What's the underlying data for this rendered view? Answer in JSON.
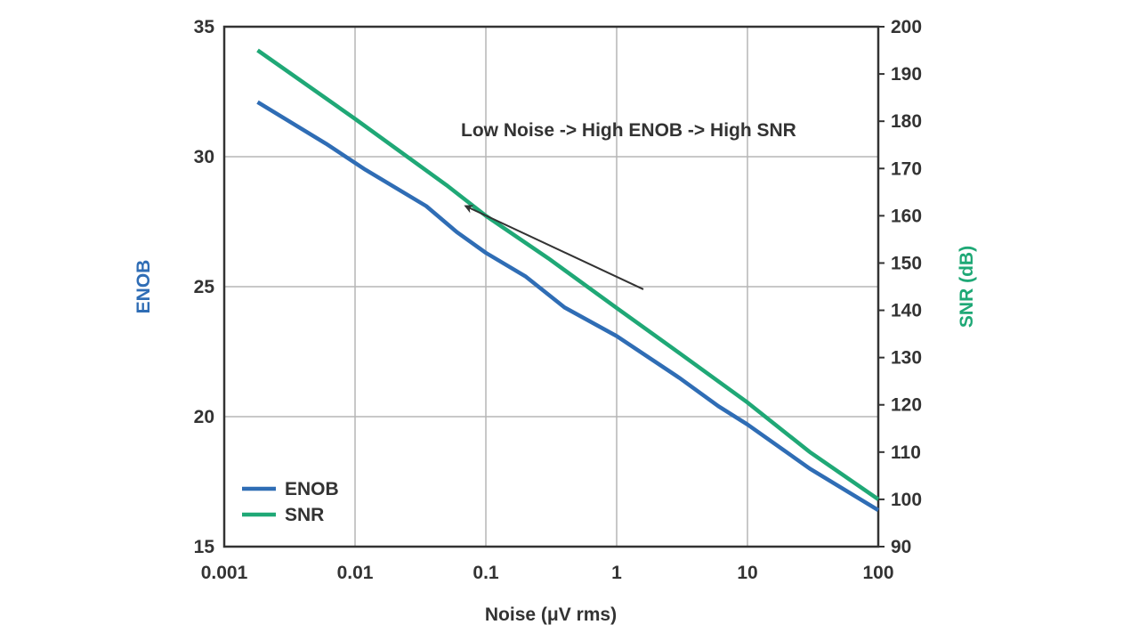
{
  "chart_data": {
    "type": "line",
    "title": "",
    "xlabel": "Noise (μV rms)",
    "ylabel_left": "ENOB",
    "ylabel_right": "SNR (dB)",
    "x_scale": "log",
    "xlim": [
      0.001,
      100
    ],
    "ylim_left": [
      15,
      35
    ],
    "ylim_right": [
      90,
      200
    ],
    "x_ticks": [
      0.001,
      0.01,
      0.1,
      1,
      10,
      100
    ],
    "x_tick_labels": [
      "0.001",
      "0.01",
      "0.1",
      "1",
      "10",
      "100"
    ],
    "y_left_ticks": [
      15,
      20,
      25,
      30,
      35
    ],
    "y_left_tick_labels": [
      "15",
      "20",
      "25",
      "30",
      "35"
    ],
    "y_right_ticks": [
      90,
      100,
      110,
      120,
      130,
      140,
      150,
      160,
      170,
      180,
      190,
      200
    ],
    "y_right_tick_labels": [
      "90",
      "100",
      "110",
      "120",
      "130",
      "140",
      "150",
      "160",
      "170",
      "180",
      "190",
      "200"
    ],
    "grid": true,
    "legend_position": "bottom-left",
    "series": [
      {
        "name": "ENOB",
        "axis": "left",
        "color": "#2f6db5",
        "x": [
          0.0018,
          0.006,
          0.012,
          0.035,
          0.06,
          0.1,
          0.2,
          0.4,
          1,
          3,
          6,
          10,
          30,
          100
        ],
        "y": [
          32.1,
          30.5,
          29.5,
          28.1,
          27.1,
          26.3,
          25.4,
          24.2,
          23.1,
          21.5,
          20.4,
          19.7,
          18.0,
          16.4
        ]
      },
      {
        "name": "SNR",
        "axis": "right",
        "color": "#1fa876",
        "x": [
          0.0018,
          0.01,
          0.05,
          0.1,
          0.3,
          1,
          3,
          10,
          30,
          100
        ],
        "y": [
          195,
          180.5,
          166.5,
          160,
          151,
          140.5,
          131,
          120.5,
          110,
          100
        ]
      }
    ],
    "annotation": {
      "text": "Low Noise -> High ENOB -> High SNR",
      "arrow_from": {
        "x": 1.6,
        "y_left": 24.9
      },
      "arrow_to": {
        "x": 0.07,
        "y_left": 28.1
      }
    }
  }
}
